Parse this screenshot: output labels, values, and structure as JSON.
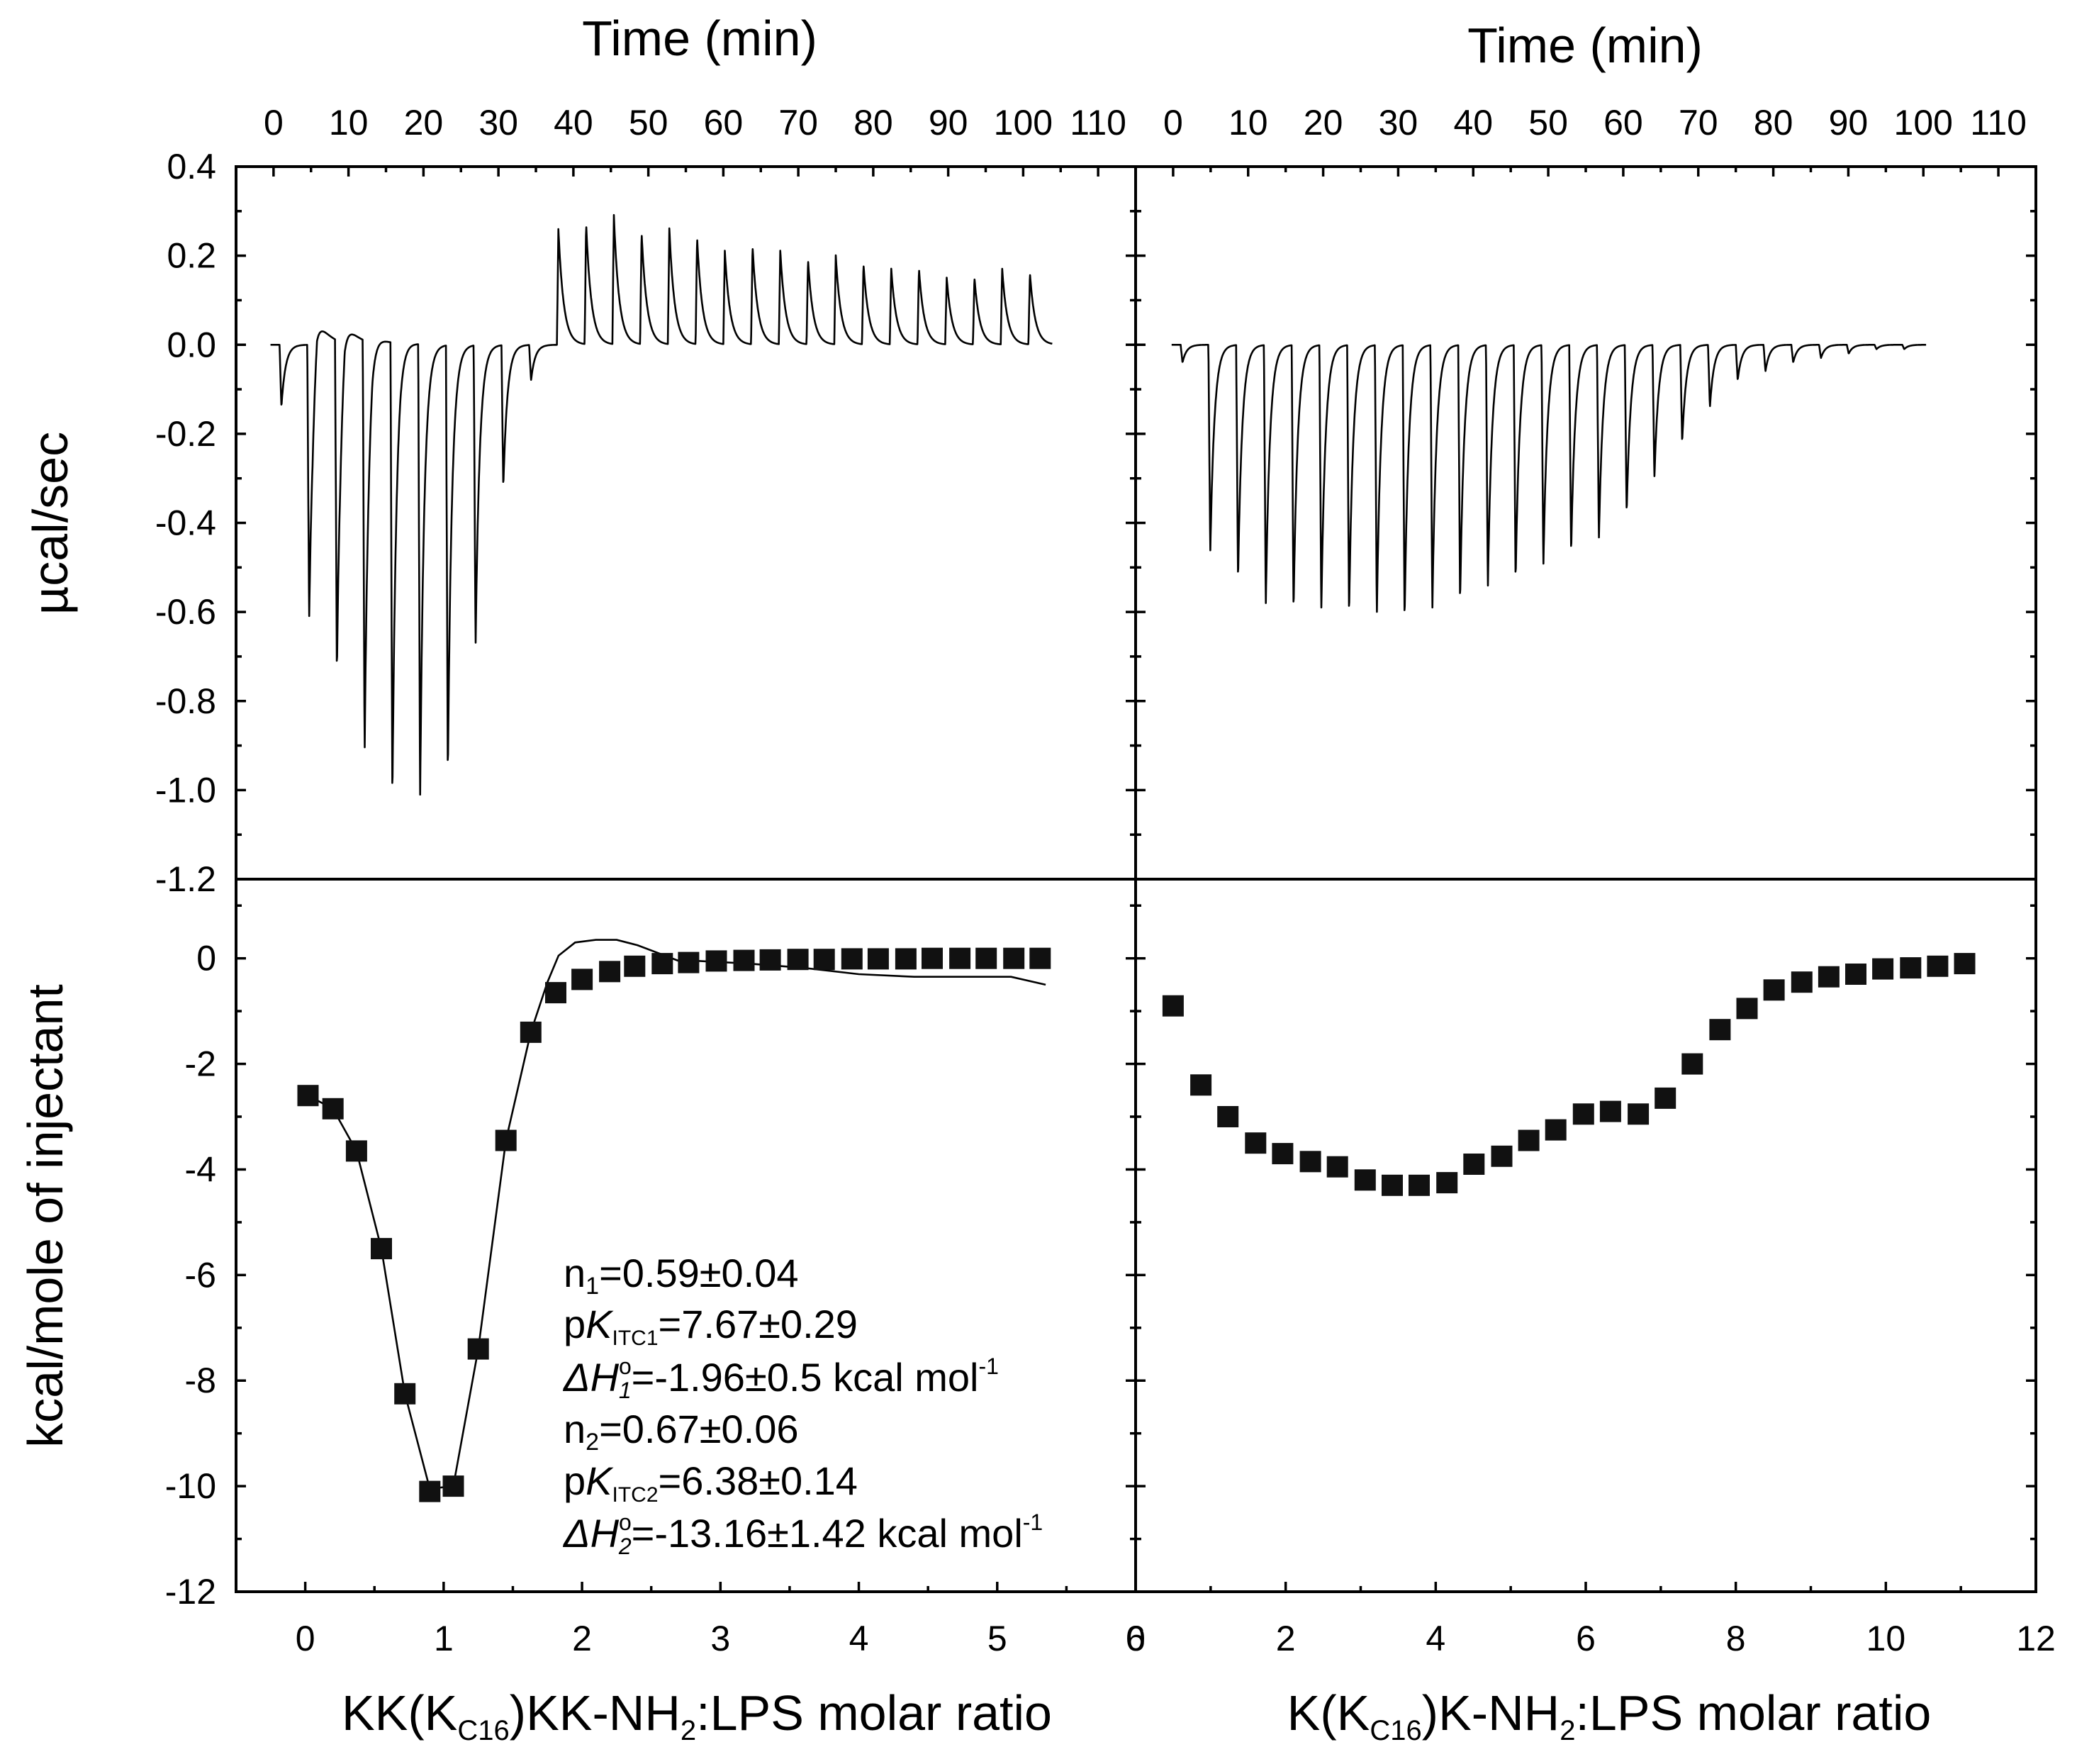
{
  "chart_data": [
    {
      "type": "line",
      "panel": "top-left",
      "xlabel": "Time (min)",
      "ylabel": "µcal/sec",
      "xlim": [
        -5,
        115
      ],
      "ylim": [
        -1.2,
        0.4
      ],
      "x_ticks": [
        "0",
        "10",
        "20",
        "30",
        "40",
        "50",
        "60",
        "70",
        "80",
        "90",
        "100",
        "110"
      ],
      "y_ticks": [
        "0.4",
        "0.2",
        "0.0",
        "-0.2",
        "-0.4",
        "-0.6",
        "-0.8",
        "-1.0",
        "-1.2"
      ],
      "injections": [
        {
          "t": 0.8,
          "peak": -0.14
        },
        {
          "t": 4.5,
          "peak": -0.62
        },
        {
          "t": 8.2,
          "peak": -0.75
        },
        {
          "t": 11.9,
          "peak": -0.93
        },
        {
          "t": 15.6,
          "peak": -1.03
        },
        {
          "t": 19.3,
          "peak": -1.03
        },
        {
          "t": 23.0,
          "peak": -0.97
        },
        {
          "t": 26.7,
          "peak": -0.68
        },
        {
          "t": 30.4,
          "peak": -0.32
        },
        {
          "t": 34.1,
          "peak": -0.08
        },
        {
          "t": 37.8,
          "peak": 0.26
        },
        {
          "t": 41.5,
          "peak": 0.27
        },
        {
          "t": 45.2,
          "peak": 0.29
        },
        {
          "t": 48.9,
          "peak": 0.25
        },
        {
          "t": 52.6,
          "peak": 0.26
        },
        {
          "t": 56.3,
          "peak": 0.24
        },
        {
          "t": 60.0,
          "peak": 0.21
        },
        {
          "t": 63.7,
          "peak": 0.22
        },
        {
          "t": 67.4,
          "peak": 0.21
        },
        {
          "t": 71.1,
          "peak": 0.19
        },
        {
          "t": 74.8,
          "peak": 0.2
        },
        {
          "t": 78.5,
          "peak": 0.18
        },
        {
          "t": 82.2,
          "peak": 0.17
        },
        {
          "t": 85.9,
          "peak": 0.17
        },
        {
          "t": 89.6,
          "peak": 0.15
        },
        {
          "t": 93.3,
          "peak": 0.15
        },
        {
          "t": 97.0,
          "peak": 0.17
        },
        {
          "t": 100.7,
          "peak": 0.16
        }
      ],
      "endothermic_early": [
        {
          "t": 5.2,
          "peak": 0.1
        },
        {
          "t": 8.9,
          "peak": 0.09
        },
        {
          "t": 12.6,
          "peak": 0.05
        },
        {
          "t": 16.3,
          "peak": 0.02
        }
      ]
    },
    {
      "type": "line",
      "panel": "top-right",
      "xlabel": "Time (min)",
      "ylabel": "",
      "xlim": [
        -5,
        115
      ],
      "ylim": [
        -1.2,
        0.4
      ],
      "x_ticks": [
        "0",
        "10",
        "20",
        "30",
        "40",
        "50",
        "60",
        "70",
        "80",
        "90",
        "100",
        "110"
      ],
      "injections": [
        {
          "t": 1.0,
          "peak": -0.04
        },
        {
          "t": 4.7,
          "peak": -0.47
        },
        {
          "t": 8.4,
          "peak": -0.53
        },
        {
          "t": 12.1,
          "peak": -0.59
        },
        {
          "t": 15.8,
          "peak": -0.6
        },
        {
          "t": 19.5,
          "peak": -0.6
        },
        {
          "t": 23.2,
          "peak": -0.61
        },
        {
          "t": 26.9,
          "peak": -0.61
        },
        {
          "t": 30.6,
          "peak": -0.62
        },
        {
          "t": 34.3,
          "peak": -0.6
        },
        {
          "t": 38.0,
          "peak": -0.58
        },
        {
          "t": 41.7,
          "peak": -0.55
        },
        {
          "t": 45.4,
          "peak": -0.53
        },
        {
          "t": 49.1,
          "peak": -0.5
        },
        {
          "t": 52.8,
          "peak": -0.47
        },
        {
          "t": 56.5,
          "peak": -0.44
        },
        {
          "t": 60.2,
          "peak": -0.38
        },
        {
          "t": 63.9,
          "peak": -0.3
        },
        {
          "t": 67.6,
          "peak": -0.22
        },
        {
          "t": 71.3,
          "peak": -0.14
        },
        {
          "t": 75.0,
          "peak": -0.08
        },
        {
          "t": 78.7,
          "peak": -0.06
        },
        {
          "t": 82.4,
          "peak": -0.04
        },
        {
          "t": 86.1,
          "peak": -0.03
        },
        {
          "t": 89.8,
          "peak": -0.02
        },
        {
          "t": 93.5,
          "peak": -0.01
        },
        {
          "t": 97.2,
          "peak": -0.01
        }
      ]
    },
    {
      "type": "scatter",
      "panel": "bottom-left",
      "xlabel_parts": {
        "pre": "KK(K",
        "sub1": "C16",
        "mid": ")KK-NH",
        "sub2": "2",
        "post": ":LPS molar ratio"
      },
      "ylabel": "kcal/mole of injectant",
      "xlim": [
        -0.5,
        6
      ],
      "ylim": [
        -12,
        1.5
      ],
      "x_ticks": [
        "0",
        "1",
        "2",
        "3",
        "4",
        "5",
        "6"
      ],
      "y_ticks": [
        "0",
        "-2",
        "-4",
        "-6",
        "-8",
        "-10",
        "-12"
      ],
      "x": [
        0.02,
        0.2,
        0.37,
        0.55,
        0.72,
        0.9,
        1.07,
        1.25,
        1.45,
        1.63,
        1.81,
        2.0,
        2.2,
        2.38,
        2.58,
        2.77,
        2.97,
        3.17,
        3.36,
        3.56,
        3.75,
        3.95,
        4.14,
        4.34,
        4.53,
        4.73,
        4.92,
        5.12,
        5.31
      ],
      "y": [
        -2.6,
        -2.85,
        -3.65,
        -5.5,
        -8.25,
        -10.1,
        -10.0,
        -7.4,
        -3.45,
        -1.4,
        -0.65,
        -0.4,
        -0.25,
        -0.15,
        -0.1,
        -0.08,
        -0.05,
        -0.04,
        -0.03,
        -0.02,
        -0.02,
        -0.01,
        -0.01,
        -0.01,
        0.0,
        0.0,
        0.0,
        0.0,
        0.0
      ],
      "fit_x": [
        0.02,
        0.2,
        0.37,
        0.55,
        0.72,
        0.9,
        1.07,
        1.25,
        1.45,
        1.63,
        1.75,
        1.83,
        1.95,
        2.1,
        2.25,
        2.4,
        2.55,
        2.7,
        2.85,
        3.2,
        3.6,
        4.0,
        4.4,
        4.8,
        5.1,
        5.35
      ],
      "fit_y": [
        -2.6,
        -2.85,
        -3.65,
        -5.5,
        -8.25,
        -10.05,
        -10.0,
        -7.4,
        -3.45,
        -1.4,
        -0.45,
        0.05,
        0.3,
        0.35,
        0.35,
        0.25,
        0.1,
        -0.05,
        -0.05,
        -0.1,
        -0.18,
        -0.3,
        -0.35,
        -0.35,
        -0.35,
        -0.5
      ],
      "annotations": {
        "line1": {
          "a": "n",
          "sub": "1",
          "b": "=0.59±0.04"
        },
        "line2": {
          "a": "p",
          "it": "K",
          "sub": "ITC1",
          "b": "=7.67±0.29"
        },
        "line3": {
          "it": "ΔH",
          "sup": "o",
          "isub": "1",
          "b": "=-1.96±0.5 kcal mol",
          "sup2": "-1"
        },
        "line4": {
          "a": "n",
          "sub": "2",
          "b": "=0.67±0.06"
        },
        "line5": {
          "a": "p",
          "it": "K",
          "sub": "ITC2",
          "b": "=6.38±0.14"
        },
        "line6": {
          "it": "ΔH",
          "sup": "o",
          "isub": "2",
          "b": "=-13.16±1.42 kcal mol",
          "sup2": "-1"
        }
      }
    },
    {
      "type": "scatter",
      "panel": "bottom-right",
      "xlabel_parts": {
        "pre": "K(K",
        "sub1": "C16",
        "mid": ")K-NH",
        "sub2": "2",
        "post": ":LPS molar ratio"
      },
      "xlim": [
        0,
        12
      ],
      "ylim": [
        -12,
        1.5
      ],
      "x_ticks": [
        "0",
        "2",
        "4",
        "6",
        "8",
        "10",
        "12"
      ],
      "x": [
        0.5,
        0.87,
        1.23,
        1.6,
        1.96,
        2.33,
        2.69,
        3.06,
        3.42,
        3.78,
        4.15,
        4.51,
        4.88,
        5.24,
        5.6,
        5.97,
        6.33,
        6.7,
        7.06,
        7.42,
        7.79,
        8.15,
        8.51,
        8.88,
        9.24,
        9.6,
        9.96,
        10.33,
        10.69,
        11.05
      ],
      "y": [
        -0.9,
        -2.4,
        -3.0,
        -3.5,
        -3.7,
        -3.85,
        -3.95,
        -4.2,
        -4.3,
        -4.3,
        -4.25,
        -3.9,
        -3.75,
        -3.45,
        -3.25,
        -2.95,
        -2.9,
        -2.95,
        -2.65,
        -2.0,
        -1.35,
        -0.95,
        -0.6,
        -0.45,
        -0.35,
        -0.3,
        -0.2,
        -0.18,
        -0.15,
        -0.1
      ]
    }
  ]
}
